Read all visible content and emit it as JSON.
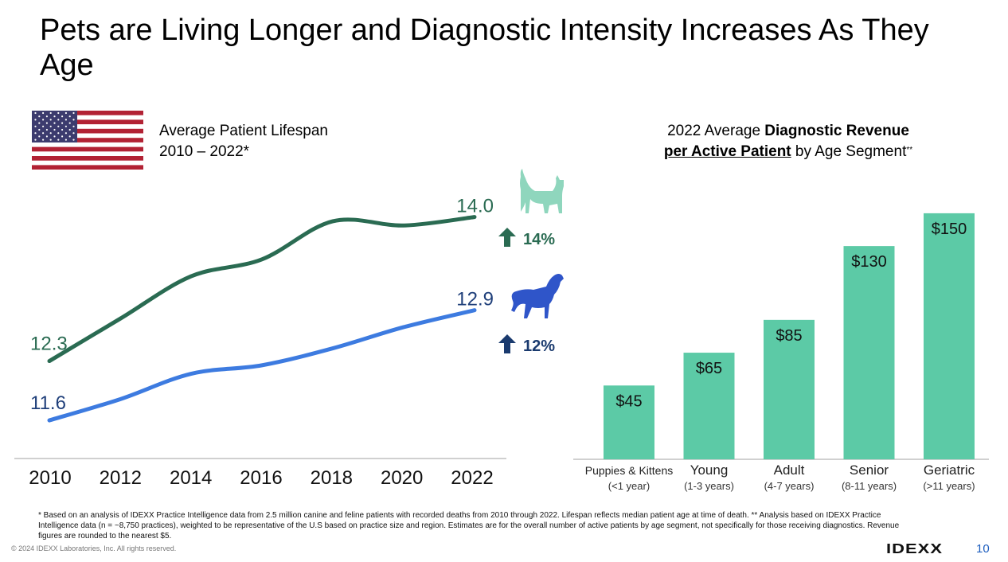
{
  "title": "Pets are Living Longer and Diagnostic Intensity Increases As They Age",
  "left_panel": {
    "header_line1": "Average Patient Lifespan",
    "header_line2": "2010 – 2022*",
    "cat_change": "14%",
    "dog_change": "12%"
  },
  "right_panel": {
    "header_prefix": "2022 Average ",
    "header_bold1": "Diagnostic Revenue",
    "header_bold2": "per Active Patient",
    "header_suffix": " by Age Segment",
    "header_sup": "**"
  },
  "colors": {
    "cat": "#2a6b52",
    "dog": "#3d7be0",
    "bar": "#5ccaa6",
    "cat_icon": "#8fd6bd",
    "dog_icon": "#2f55c9",
    "dog_arrow": "#1a3a6e"
  },
  "chart_data": [
    {
      "type": "line",
      "x": [
        2010,
        2012,
        2014,
        2016,
        2018,
        2020,
        2022
      ],
      "xticks": [
        "2010",
        "2012",
        "2014",
        "2016",
        "2018",
        "2020",
        "2022"
      ],
      "series": [
        {
          "key": "cat",
          "values": [
            12.3,
            12.8,
            13.3,
            13.5,
            13.95,
            13.9,
            14.0
          ],
          "start_label": "12.3",
          "end_label": "14.0"
        },
        {
          "key": "dog",
          "values": [
            11.6,
            11.85,
            12.15,
            12.25,
            12.45,
            12.7,
            12.9
          ],
          "start_label": "11.6",
          "end_label": "12.9"
        }
      ],
      "ylim": [
        11.3,
        14.4
      ]
    },
    {
      "type": "bar",
      "categories": [
        "Puppies & Kittens",
        "Young",
        "Adult",
        "Senior",
        "Geriatric"
      ],
      "sublabels": [
        "(<1 year)",
        "(1-3 years)",
        "(4-7 years)",
        "(8-11 years)",
        "(>11 years)"
      ],
      "values": [
        45,
        65,
        85,
        130,
        150
      ],
      "value_labels": [
        "$45",
        "$65",
        "$85",
        "$130",
        "$150"
      ],
      "ylim": [
        0,
        165
      ]
    }
  ],
  "footnote": "* Based on an analysis of IDEXX Practice Intelligence data from 2.5 million canine and feline patients with recorded deaths from 2010 through 2022. Lifespan reflects median patient age at time of death.    ** Analysis based on IDEXX Practice Intelligence data (n = ~8,750 practices), weighted to be representative of the U.S based on practice size and region. Estimates are for the overall number of active patients by age segment, not specifically for those receiving diagnostics. Revenue figures are rounded to the nearest $5.",
  "copyright": "© 2024 IDEXX Laboratories, Inc. All rights reserved.",
  "logo": "IDEXX",
  "page_number": "10"
}
